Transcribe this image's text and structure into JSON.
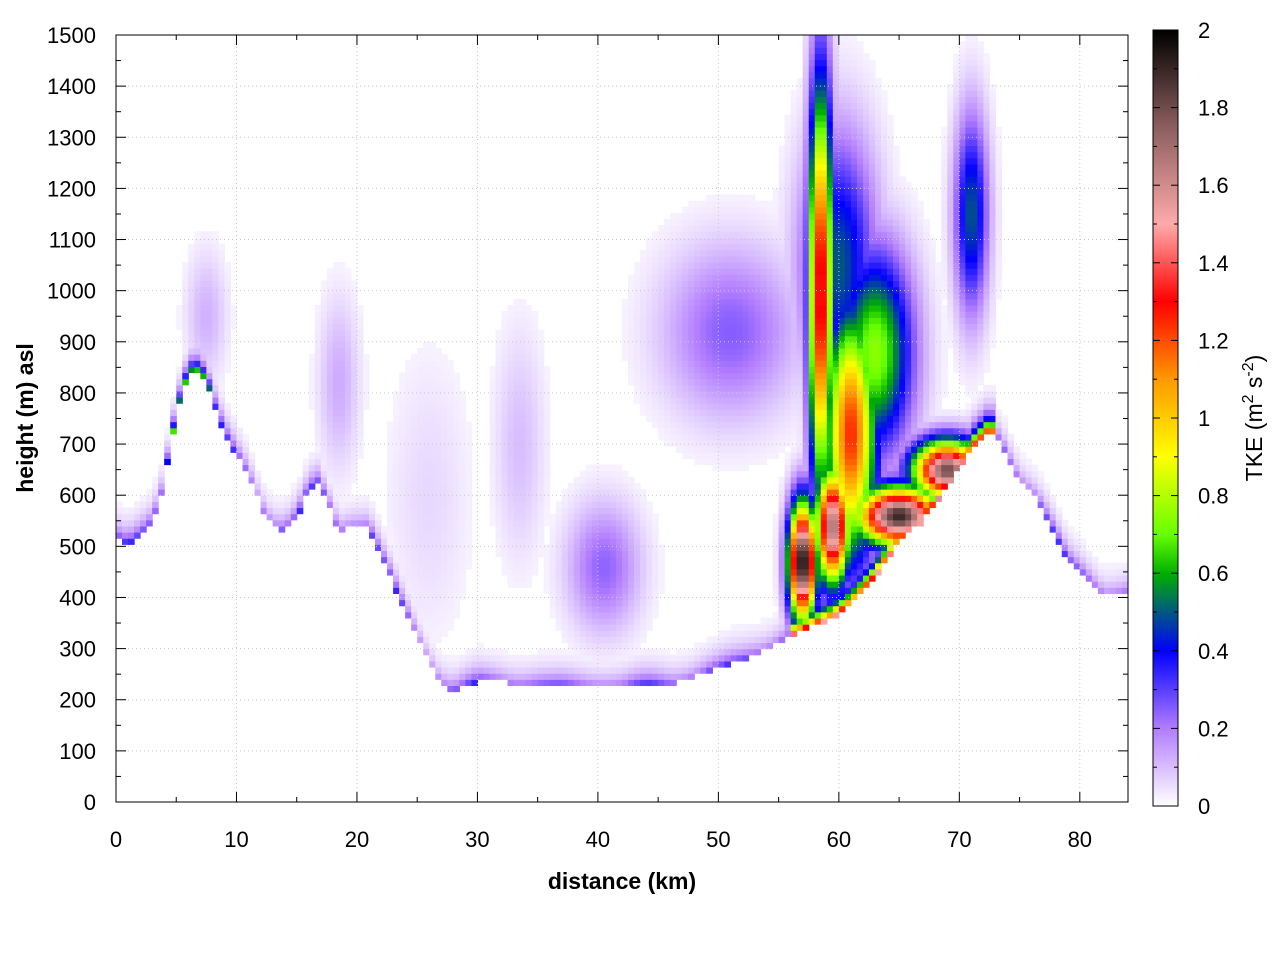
{
  "chart_data": {
    "type": "heatmap",
    "xlabel": "distance (km)",
    "ylabel": "height (m) asl",
    "xlim": [
      0,
      84
    ],
    "ylim": [
      0,
      1500
    ],
    "x_ticks": [
      "0",
      "10",
      "20",
      "30",
      "40",
      "50",
      "60",
      "70",
      "80"
    ],
    "y_ticks": [
      "0",
      "100",
      "200",
      "300",
      "400",
      "500",
      "600",
      "700",
      "800",
      "900",
      "1000",
      "1100",
      "1200",
      "1300",
      "1400",
      "1500"
    ],
    "grid": true,
    "colorbar": {
      "label_main": "TKE (m",
      "label_sup1": "2",
      "label_mid": " s",
      "label_sup2": "-2",
      "label_end": ")",
      "range": [
        0,
        2
      ],
      "ticks": [
        "0",
        "0.2",
        "0.4",
        "0.6",
        "0.8",
        "1",
        "1.2",
        "1.4",
        "1.6",
        "1.8",
        "2"
      ],
      "stops": [
        {
          "v": 0.0,
          "c": "#ffffff"
        },
        {
          "v": 0.2,
          "c": "#b27cff"
        },
        {
          "v": 0.4,
          "c": "#0000ff"
        },
        {
          "v": 0.6,
          "c": "#00b000"
        },
        {
          "v": 0.7,
          "c": "#66ff00"
        },
        {
          "v": 0.9,
          "c": "#ffff00"
        },
        {
          "v": 1.1,
          "c": "#ff9900"
        },
        {
          "v": 1.3,
          "c": "#ff0000"
        },
        {
          "v": 1.5,
          "c": "#ffaaaa"
        },
        {
          "v": 1.75,
          "c": "#8c5e5e"
        },
        {
          "v": 2.0,
          "c": "#000000"
        }
      ]
    },
    "terrain": [
      [
        0,
        520
      ],
      [
        1,
        505
      ],
      [
        2,
        520
      ],
      [
        3,
        545
      ],
      [
        4,
        620
      ],
      [
        5,
        760
      ],
      [
        6,
        840
      ],
      [
        7,
        845
      ],
      [
        8,
        790
      ],
      [
        9,
        720
      ],
      [
        10,
        680
      ],
      [
        11,
        640
      ],
      [
        12,
        580
      ],
      [
        13,
        540
      ],
      [
        14,
        530
      ],
      [
        15,
        555
      ],
      [
        16,
        610
      ],
      [
        16.8,
        625
      ],
      [
        17.5,
        590
      ],
      [
        18.5,
        530
      ],
      [
        19.5,
        540
      ],
      [
        21,
        535
      ],
      [
        22,
        480
      ],
      [
        23.5,
        400
      ],
      [
        25,
        320
      ],
      [
        26,
        270
      ],
      [
        27,
        230
      ],
      [
        28,
        215
      ],
      [
        29,
        225
      ],
      [
        30,
        235
      ],
      [
        32,
        235
      ],
      [
        34,
        230
      ],
      [
        36,
        225
      ],
      [
        38,
        225
      ],
      [
        40,
        228
      ],
      [
        42,
        222
      ],
      [
        44,
        230
      ],
      [
        46,
        232
      ],
      [
        48,
        245
      ],
      [
        50,
        260
      ],
      [
        52,
        278
      ],
      [
        54,
        300
      ],
      [
        56,
        325
      ],
      [
        58,
        345
      ],
      [
        59.5,
        360
      ],
      [
        61,
        385
      ],
      [
        63,
        440
      ],
      [
        65,
        510
      ],
      [
        67,
        550
      ],
      [
        69,
        620
      ],
      [
        71,
        690
      ],
      [
        72.5,
        725
      ],
      [
        73.5,
        700
      ],
      [
        75,
        630
      ],
      [
        76.5,
        590
      ],
      [
        78,
        520
      ],
      [
        79,
        470
      ],
      [
        80.5,
        440
      ],
      [
        82,
        405
      ],
      [
        83.5,
        405
      ]
    ],
    "tke_features": [
      {
        "x": 58.5,
        "y": 1000,
        "sx": 0.7,
        "sy": 280,
        "v": 1.4
      },
      {
        "x": 58.5,
        "y": 1240,
        "sx": 0.5,
        "sy": 60,
        "v": 0.75
      },
      {
        "x": 61,
        "y": 720,
        "sx": 1.5,
        "sy": 170,
        "v": 1.25
      },
      {
        "x": 63,
        "y": 880,
        "sx": 2.2,
        "sy": 140,
        "v": 0.75
      },
      {
        "x": 60,
        "y": 1050,
        "sx": 2.2,
        "sy": 180,
        "v": 0.5
      },
      {
        "x": 57,
        "y": 470,
        "sx": 0.8,
        "sy": 80,
        "v": 2.0
      },
      {
        "x": 59.5,
        "y": 540,
        "sx": 1.0,
        "sy": 80,
        "v": 1.7
      },
      {
        "x": 65,
        "y": 560,
        "sx": 2.5,
        "sy": 40,
        "v": 1.9
      },
      {
        "x": 69,
        "y": 650,
        "sx": 2.0,
        "sy": 40,
        "v": 1.8
      },
      {
        "x": 71,
        "y": 1150,
        "sx": 1.0,
        "sy": 140,
        "v": 0.5
      },
      {
        "x": 51,
        "y": 920,
        "sx": 4.0,
        "sy": 120,
        "v": 0.25
      },
      {
        "x": 40.5,
        "y": 460,
        "sx": 2.2,
        "sy": 90,
        "v": 0.24
      },
      {
        "x": 18.5,
        "y": 820,
        "sx": 1.2,
        "sy": 120,
        "v": 0.13
      },
      {
        "x": 7.5,
        "y": 950,
        "sx": 1.2,
        "sy": 90,
        "v": 0.12
      },
      {
        "x": 33.5,
        "y": 700,
        "sx": 1.5,
        "sy": 160,
        "v": 0.1
      },
      {
        "x": 26,
        "y": 600,
        "sx": 2.5,
        "sy": 200,
        "v": 0.06
      }
    ]
  }
}
